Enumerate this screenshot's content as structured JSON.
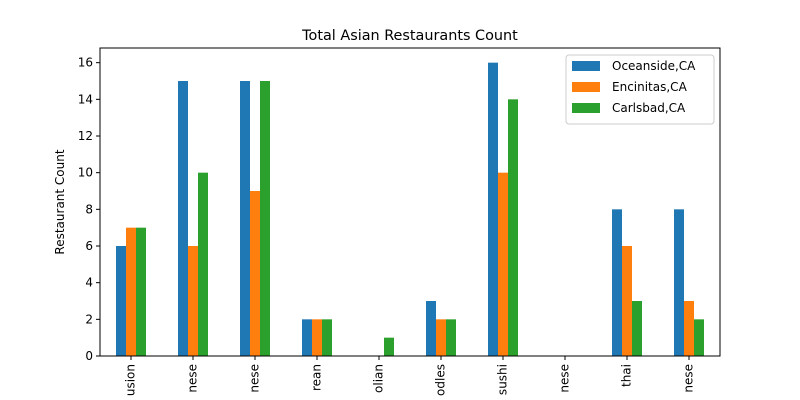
{
  "chart_data": {
    "type": "bar",
    "title": "Total Asian Restaurants Count",
    "xlabel": "",
    "ylabel": "Restaurant Count",
    "ylim": [
      0,
      16.8
    ],
    "yticks": [
      "0",
      "2",
      "4",
      "6",
      "8",
      "10",
      "12",
      "14",
      "16"
    ],
    "categories": [
      "usion",
      "nese",
      "nese",
      "rean",
      "olian",
      "odles",
      "sushi",
      "nese",
      "thai",
      "nese"
    ],
    "series": [
      {
        "name": "Oceanside,CA",
        "color": "#1f77b4",
        "values": [
          6,
          15,
          15,
          2,
          0,
          3,
          16,
          0,
          8,
          8
        ]
      },
      {
        "name": "Encinitas,CA",
        "color": "#ff7f0e",
        "values": [
          7,
          6,
          9,
          2,
          0,
          2,
          10,
          0,
          6,
          3
        ]
      },
      {
        "name": "Carlsbad,CA",
        "color": "#2ca02c",
        "values": [
          7,
          10,
          15,
          2,
          1,
          2,
          14,
          0,
          3,
          2
        ]
      }
    ],
    "legend_position": "top-right",
    "grid": false
  }
}
